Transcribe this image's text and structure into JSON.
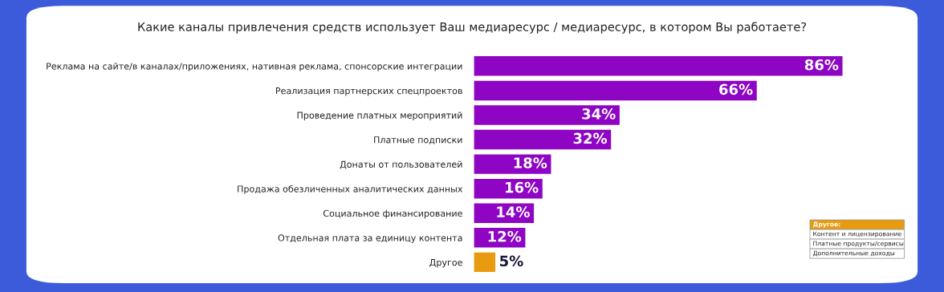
{
  "chart_data": {
    "type": "bar",
    "orientation": "horizontal",
    "title": "Какие каналы привлечения средств использует Ваш медиаресурс / медиаресурс, в котором Вы работаете?",
    "categories": [
      "Реклама на сайте/в каналах/приложениях, нативная реклама, спонсорские интеграции",
      "Реализация партнерских спецпроектов",
      "Проведение платных мероприятий",
      "Платные подписки",
      "Донаты от пользователей",
      "Продажа обезличенных аналитических данных",
      "Социальное финансирование",
      "Отдельная плата за единицу контента",
      "Другое"
    ],
    "values": [
      86,
      66,
      34,
      32,
      18,
      16,
      14,
      12,
      5
    ],
    "value_labels": [
      "86%",
      "66%",
      "34%",
      "32%",
      "18%",
      "16%",
      "14%",
      "12%",
      "5%"
    ],
    "colors": [
      "#8e06c4",
      "#8e06c4",
      "#8e06c4",
      "#8e06c4",
      "#8e06c4",
      "#8e06c4",
      "#8e06c4",
      "#8e06c4",
      "#e89b0f"
    ],
    "annotations": [
      "Другое:",
      "Контент и лицензирование",
      "Платные продукты/сервисы",
      "Дополнительные доходы"
    ]
  }
}
